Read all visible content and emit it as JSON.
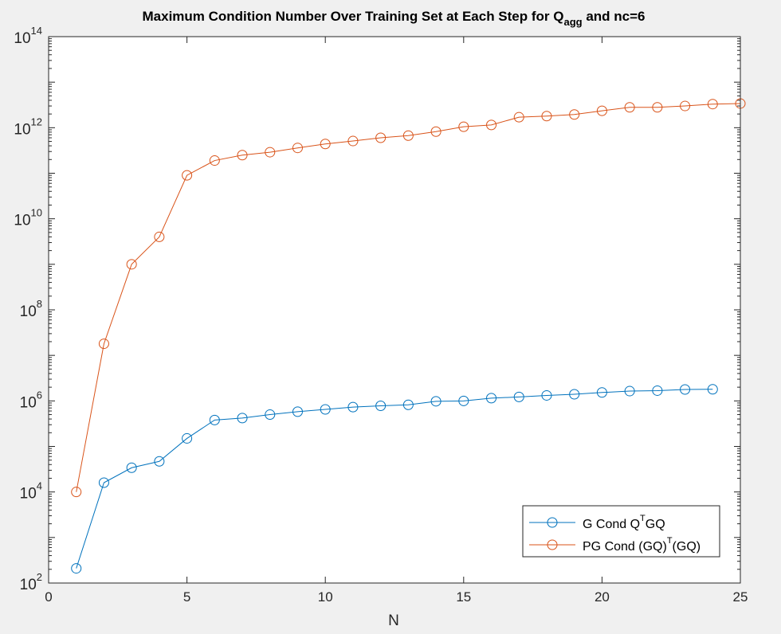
{
  "chart_data": {
    "type": "line",
    "title": "Maximum Condition Number Over Training Set at Each Step for Q",
    "title_subscript": "agg",
    "title_suffix": " and nc=6",
    "xlabel": "N",
    "ylabel": "",
    "xlim": [
      0,
      25
    ],
    "ylim": [
      100,
      100000000000000
    ],
    "yscale": "log",
    "grid": false,
    "legend_placement": "bottom-right",
    "x_ticks": [
      "0",
      "5",
      "10",
      "15",
      "20",
      "25"
    ],
    "y_ticks": [
      {
        "base": "10",
        "exp": "2"
      },
      {
        "base": "10",
        "exp": "4"
      },
      {
        "base": "10",
        "exp": "6"
      },
      {
        "base": "10",
        "exp": "8"
      },
      {
        "base": "10",
        "exp": "10"
      },
      {
        "base": "10",
        "exp": "12"
      },
      {
        "base": "10",
        "exp": "14"
      }
    ],
    "x": [
      1,
      2,
      3,
      4,
      5,
      6,
      7,
      8,
      9,
      10,
      11,
      12,
      13,
      14,
      15,
      16,
      17,
      18,
      19,
      20,
      21,
      22,
      23,
      24,
      25
    ],
    "series": [
      {
        "legend_prefix": "G Cond Q",
        "legend_sup": "T",
        "legend_suffix": "GQ",
        "color": "#0072BD",
        "marker": "circle",
        "values": [
          210,
          16000,
          34000,
          47000,
          150000,
          380000,
          420000,
          500000,
          580000,
          650000,
          730000,
          780000,
          820000,
          980000,
          1000000,
          1150000,
          1220000,
          1320000,
          1400000,
          1530000,
          1640000,
          1680000,
          1780000,
          1800000,
          null
        ]
      },
      {
        "legend_prefix": "PG Cond (GQ)",
        "legend_sup": "T",
        "legend_suffix": "(GQ)",
        "color": "#D95319",
        "marker": "circle",
        "values": [
          10000,
          18000000,
          1000000000,
          4000000000,
          90000000000,
          190000000000,
          250000000000,
          290000000000,
          360000000000,
          440000000000,
          510000000000,
          600000000000,
          670000000000,
          820000000000,
          1050000000000,
          1150000000000,
          1700000000000,
          1800000000000,
          1950000000000,
          2350000000000,
          2800000000000,
          2800000000000,
          3000000000000,
          3300000000000,
          3400000000000
        ]
      }
    ]
  }
}
